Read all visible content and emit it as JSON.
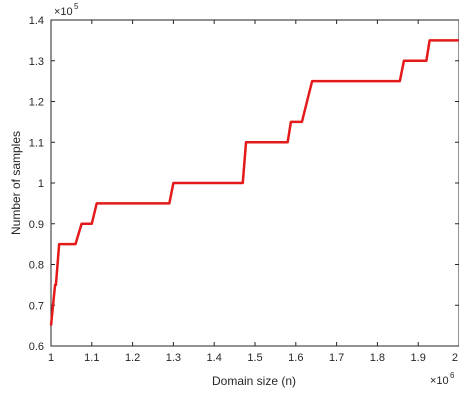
{
  "chart_data": {
    "type": "line",
    "xlabel": "Domain size (n)",
    "ylabel": "Number of samples",
    "x_multiplier": {
      "base": "×10",
      "exponent": "6"
    },
    "y_multiplier": {
      "base": "×10",
      "exponent": "5"
    },
    "xlim": [
      1,
      2
    ],
    "ylim": [
      0.6,
      1.4
    ],
    "x_ticks": [
      "1",
      "1.1",
      "1.2",
      "1.3",
      "1.4",
      "1.5",
      "1.6",
      "1.7",
      "1.8",
      "1.9",
      "2"
    ],
    "y_ticks": [
      "0.6",
      "0.7",
      "0.8",
      "0.9",
      "1",
      "1.1",
      "1.2",
      "1.3",
      "1.4"
    ],
    "grid": false,
    "series": [
      {
        "color": "#e41a1a",
        "x": [
          1.0,
          1.01,
          1.012,
          1.02,
          1.028,
          1.06,
          1.075,
          1.1,
          1.112,
          1.29,
          1.3,
          1.47,
          1.478,
          1.58,
          1.588,
          1.615,
          1.64,
          1.855,
          1.865,
          1.92,
          1.928,
          2.0
        ],
        "y": [
          0.65,
          0.75,
          0.75,
          0.85,
          0.85,
          0.85,
          0.9,
          0.9,
          0.95,
          0.95,
          1.0,
          1.0,
          1.1,
          1.1,
          1.15,
          1.15,
          1.25,
          1.25,
          1.3,
          1.3,
          1.35,
          1.35
        ]
      }
    ]
  }
}
